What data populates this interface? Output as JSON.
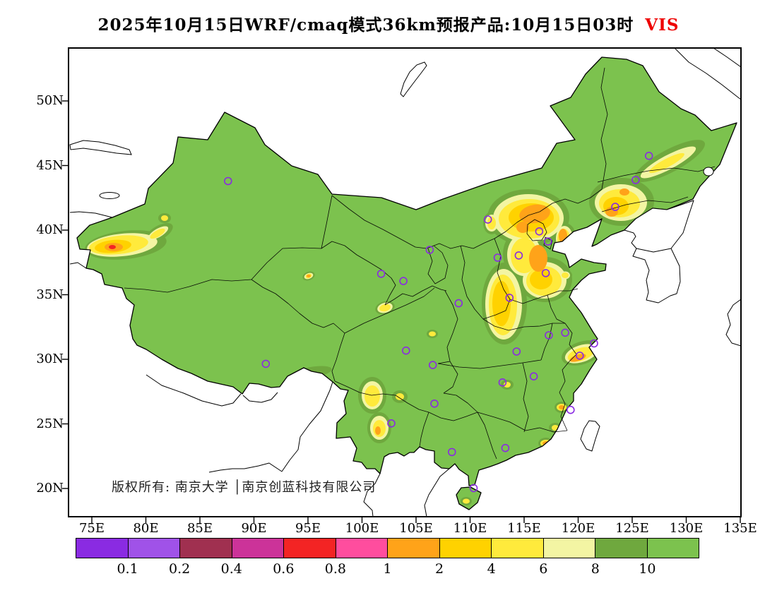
{
  "title": {
    "main": "2025年10月15日WRF/cmaq模式36km预报产品:10月15日03时",
    "variable": "VIS",
    "variable_color": "#EE0000"
  },
  "copyright": "版权所有: 南京大学 │南京创蓝科技有限公司",
  "chart_data": {
    "type": "heatmap",
    "title": "2025年10月15日WRF/cmaq模式36km预报产品:10月15日03时 VIS",
    "variable": "VIS",
    "lat_ticks": [
      "50N",
      "45N",
      "40N",
      "35N",
      "30N",
      "25N",
      "20N"
    ],
    "lon_ticks": [
      "75E",
      "80E",
      "85E",
      "90E",
      "95E",
      "100E",
      "105E",
      "110E",
      "115E",
      "120E",
      "125E",
      "130E",
      "135E"
    ],
    "lon_range": [
      75,
      135
    ],
    "lat_range": [
      20,
      50
    ],
    "legend": {
      "boundary_labels": [
        "0.1",
        "0.2",
        "0.4",
        "0.6",
        "0.8",
        "1",
        "2",
        "4",
        "6",
        "8",
        "10"
      ],
      "colors": [
        "#8A2BE2",
        "#A052E8",
        "#A03050",
        "#CC3399",
        "#F32424",
        "#FF4D9E",
        "#FFA319",
        "#FFD200",
        "#FFEA3C",
        "#F3F5A3",
        "#6FA83E",
        "#7CC24E"
      ]
    },
    "base_field": "visibility > 10 km (green) over most of China",
    "city_marker_color": "#8A2BE2",
    "city_markers": [
      [
        87.6,
        43.8
      ],
      [
        126.55,
        45.75
      ],
      [
        125.32,
        43.88
      ],
      [
        123.43,
        41.8
      ],
      [
        111.65,
        40.82
      ],
      [
        116.4,
        39.9
      ],
      [
        117.2,
        39.12
      ],
      [
        114.5,
        38.04
      ],
      [
        112.55,
        37.87
      ],
      [
        117.0,
        36.67
      ],
      [
        106.27,
        38.47
      ],
      [
        103.83,
        36.06
      ],
      [
        101.77,
        36.62
      ],
      [
        108.94,
        34.34
      ],
      [
        113.65,
        34.76
      ],
      [
        91.1,
        29.65
      ],
      [
        104.07,
        30.67
      ],
      [
        106.55,
        29.56
      ],
      [
        106.7,
        26.57
      ],
      [
        102.71,
        25.04
      ],
      [
        114.3,
        30.6
      ],
      [
        113.0,
        28.21
      ],
      [
        115.89,
        28.68
      ],
      [
        117.28,
        31.86
      ],
      [
        118.8,
        32.06
      ],
      [
        121.47,
        31.23
      ],
      [
        120.15,
        30.28
      ],
      [
        119.3,
        26.08
      ],
      [
        113.26,
        23.13
      ],
      [
        108.32,
        22.82
      ],
      [
        110.33,
        20.03
      ]
    ],
    "low_visibility_regions": [
      {
        "name": "western Xinjiang (west Tarim Basin)",
        "approx_min_vis_km": 0.8
      },
      {
        "name": "Beijing-Tianjin-Hebei with band south through Shanxi/Henan",
        "approx_min_vis_km": 1
      },
      {
        "name": "central Liaoning - eastern Jilin",
        "approx_min_vis_km": 1
      },
      {
        "name": "Shanghai / Yangtze estuary spot",
        "approx_min_vis_km": 0.1
      },
      {
        "name": "Sichuan-Yunnan-Guizhou pockets",
        "approx_min_vis_km": 2
      },
      {
        "name": "southeast coastal spots (Fujian-Guangdong)",
        "approx_min_vis_km": 1
      }
    ]
  }
}
